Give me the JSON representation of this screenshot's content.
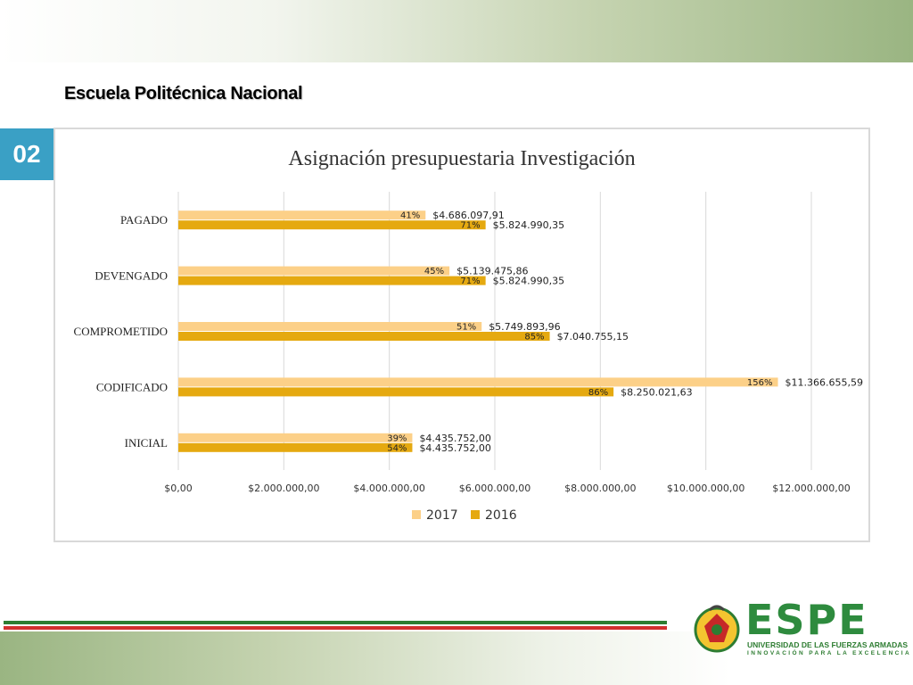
{
  "header": {
    "title": "Escuela Politécnica Nacional",
    "slide_number": "02"
  },
  "footer": {
    "logo_text": "ESPE",
    "logo_subtitle": "UNIVERSIDAD DE LAS FUERZAS ARMADAS",
    "logo_tagline": "INNOVACIÓN PARA LA EXCELENCIA",
    "colors": {
      "green": "#2e7d32",
      "red": "#d32f2f"
    }
  },
  "chart_data": {
    "type": "bar",
    "orientation": "horizontal",
    "title": "Asignación presupuestaria Investigación",
    "categories": [
      "INICIAL",
      "CODIFICADO",
      "COMPROMETIDO",
      "DEVENGADO",
      "PAGADO"
    ],
    "series": [
      {
        "name": "2017",
        "color": "#fcd088",
        "values": [
          4435752.0,
          11366655.59,
          5749893.96,
          5139475.86,
          4686097.91
        ],
        "value_labels": [
          "$4.435.752,00",
          "$11.366.655,59",
          "$5.749.893,96",
          "$5.139.475,86",
          "$4.686.097,91"
        ],
        "pct_labels": [
          "39%",
          "156%",
          "51%",
          "45%",
          "41%"
        ]
      },
      {
        "name": "2016",
        "color": "#e5a910",
        "values": [
          4435752.0,
          8250021.63,
          7040755.15,
          5824990.35,
          5824990.35
        ],
        "value_labels": [
          "$4.435.752,00",
          "$8.250.021,63",
          "$7.040.755,15",
          "$5.824.990,35",
          "$5.824.990,35"
        ],
        "pct_labels": [
          "54%",
          "86%",
          "85%",
          "71%",
          "71%"
        ]
      }
    ],
    "x_ticks": [
      "$0,00",
      "$2.000.000,00",
      "$4.000.000,00",
      "$6.000.000,00",
      "$8.000.000,00",
      "$10.000.000,00",
      "$12.000.000,00"
    ],
    "xlim": [
      0,
      12000000
    ],
    "grid": true,
    "legend_position": "bottom"
  }
}
